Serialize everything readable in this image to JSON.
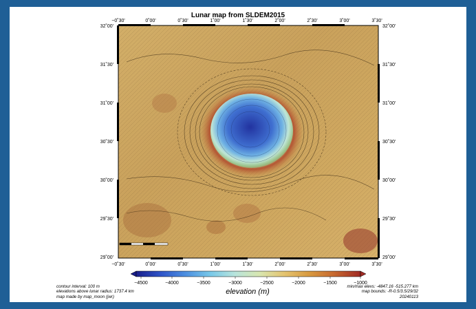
{
  "map": {
    "title": "Lunar map from SLDEM2015",
    "top_lon_labels": [
      "−0˚30'",
      "0˚00'",
      "0˚30'",
      "1˚00'",
      "1˚30'",
      "2˚00'",
      "2˚30'",
      "3˚00'",
      "3˚30'"
    ],
    "bottom_lon_labels": [
      "−0˚30'",
      "0˚00'",
      "0˚30'",
      "1˚00'",
      "1˚30'",
      "2˚00'",
      "2˚30'",
      "3˚00'",
      "3˚30'"
    ],
    "left_lat_labels": [
      "32˚00'",
      "31˚30'",
      "31˚00'",
      "30˚30'",
      "30˚00'",
      "29˚30'",
      "29˚00'"
    ],
    "right_lat_labels": [
      "32˚00'",
      "31˚30'",
      "31˚00'",
      "30˚30'",
      "30˚00'",
      "29˚30'",
      "29˚00'"
    ]
  },
  "colorbar": {
    "label": "elevation (m)",
    "ticks": [
      "−4500",
      "−4000",
      "−3500",
      "−3000",
      "−2500",
      "−2000",
      "−1500",
      "−1000"
    ],
    "colors": [
      "#1a1f8c",
      "#2f55c8",
      "#4d8fe0",
      "#78c8e8",
      "#b8e4dc",
      "#d8e6b0",
      "#e4c470",
      "#d89a40",
      "#c86a30",
      "#a02a24"
    ]
  },
  "footer_left": [
    "contour interval: 100 m",
    "elevations above lunar radius: 1737.4 km",
    "map made by map_moon (jwr)"
  ],
  "footer_right": [
    "min/max elevs: -4847.16 -515.277 km",
    "map bounds: -R-0.5/3.5/29/32",
    "20240113"
  ]
}
